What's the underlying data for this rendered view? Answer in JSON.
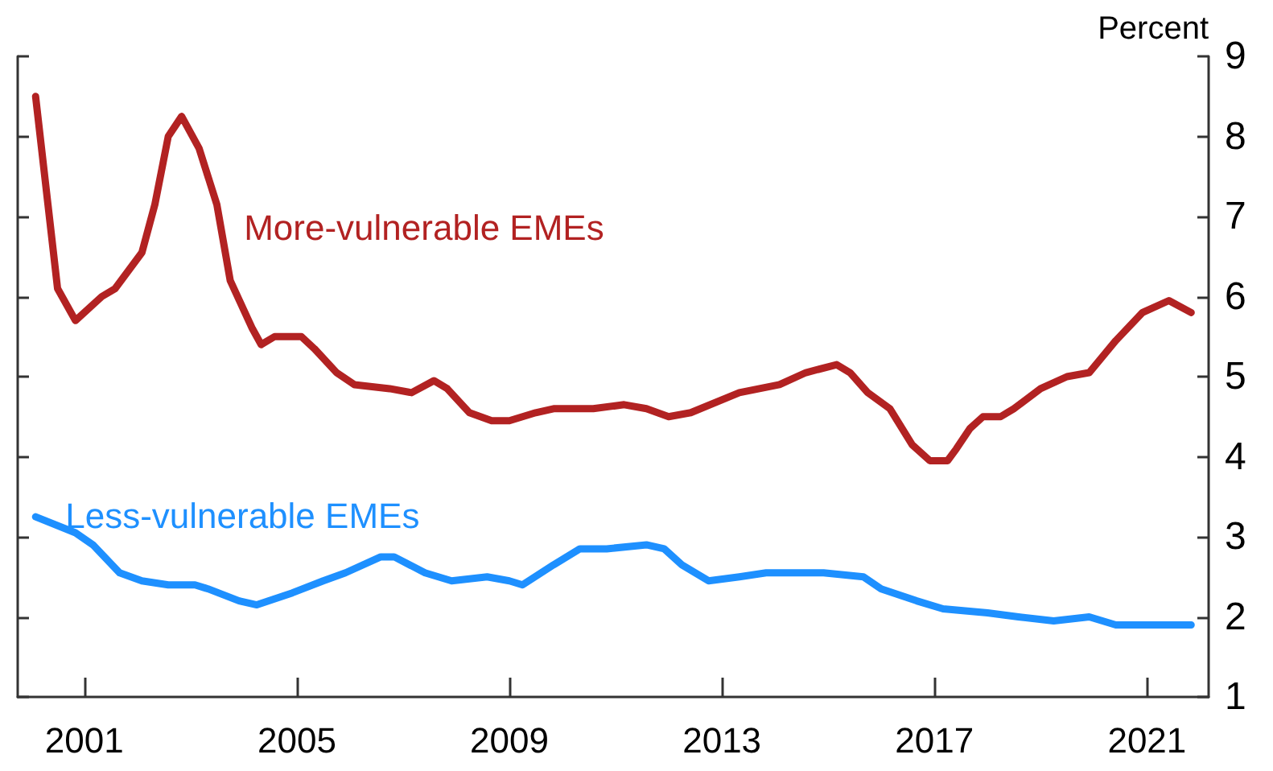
{
  "chart_data": {
    "type": "line",
    "ylabel": "Percent",
    "xlim": [
      "1999-10",
      "2022-03"
    ],
    "xticks": [
      {
        "value": "2001-01",
        "label": "2001"
      },
      {
        "value": "2005-01",
        "label": "2005"
      },
      {
        "value": "2009-01",
        "label": "2009"
      },
      {
        "value": "2013-01",
        "label": "2013"
      },
      {
        "value": "2017-01",
        "label": "2017"
      },
      {
        "value": "2021-01",
        "label": "2021"
      }
    ],
    "ylim": [
      1,
      9
    ],
    "yticks": [
      1,
      2,
      3,
      4,
      5,
      6,
      7,
      8,
      9
    ],
    "grid": false,
    "legend": false,
    "marker": "none",
    "line_style": "solid",
    "series": [
      {
        "name": "More-vulnerable EMEs",
        "color": "#b22222",
        "x": [
          "2000-02",
          "2000-07",
          "2000-11",
          "2001-05",
          "2001-08",
          "2002-02",
          "2002-05",
          "2002-08",
          "2002-11",
          "2003-03",
          "2003-07",
          "2003-10",
          "2004-03",
          "2004-05",
          "2004-08",
          "2005-02",
          "2005-05",
          "2005-10",
          "2006-02",
          "2006-10",
          "2007-03",
          "2007-08",
          "2007-11",
          "2008-04",
          "2008-09",
          "2009-01",
          "2009-07",
          "2009-11",
          "2010-08",
          "2011-03",
          "2011-08",
          "2012-01",
          "2012-06",
          "2013-05",
          "2014-02",
          "2014-08",
          "2015-03",
          "2015-06",
          "2015-10",
          "2016-03",
          "2016-08",
          "2016-12",
          "2017-04",
          "2017-06",
          "2017-09",
          "2017-12",
          "2018-04",
          "2018-07",
          "2019-01",
          "2019-07",
          "2019-12",
          "2020-06",
          "2020-12",
          "2021-06",
          "2021-11"
        ],
        "values": [
          8.5,
          6.1,
          5.7,
          6.0,
          6.1,
          6.55,
          7.15,
          8.0,
          8.25,
          7.85,
          7.15,
          6.2,
          5.6,
          5.4,
          5.5,
          5.5,
          5.35,
          5.05,
          4.9,
          4.85,
          4.8,
          4.95,
          4.85,
          4.55,
          4.45,
          4.45,
          4.55,
          4.6,
          4.6,
          4.65,
          4.6,
          4.5,
          4.55,
          4.8,
          4.9,
          5.05,
          5.15,
          5.05,
          4.8,
          4.6,
          4.15,
          3.95,
          3.95,
          4.1,
          4.35,
          4.5,
          4.5,
          4.6,
          4.85,
          5.0,
          5.05,
          5.45,
          5.8,
          5.95,
          5.8
        ]
      },
      {
        "name": "Less-vulnerable EMEs",
        "color": "#1e90ff",
        "x": [
          "2000-02",
          "2000-11",
          "2001-03",
          "2001-09",
          "2002-02",
          "2002-08",
          "2003-02",
          "2003-05",
          "2003-12",
          "2004-04",
          "2004-12",
          "2005-07",
          "2005-12",
          "2006-08",
          "2006-11",
          "2007-06",
          "2007-12",
          "2008-08",
          "2009-01",
          "2009-04",
          "2009-11",
          "2010-05",
          "2010-11",
          "2011-08",
          "2011-12",
          "2012-04",
          "2012-10",
          "2013-05",
          "2013-11",
          "2014-05",
          "2014-12",
          "2015-09",
          "2016-01",
          "2016-09",
          "2017-03",
          "2018-01",
          "2018-08",
          "2019-04",
          "2019-12",
          "2020-06",
          "2021-11"
        ],
        "values": [
          3.25,
          3.05,
          2.9,
          2.55,
          2.45,
          2.4,
          2.4,
          2.35,
          2.2,
          2.15,
          2.3,
          2.45,
          2.55,
          2.75,
          2.75,
          2.55,
          2.45,
          2.5,
          2.45,
          2.4,
          2.65,
          2.85,
          2.85,
          2.9,
          2.85,
          2.65,
          2.45,
          2.5,
          2.55,
          2.55,
          2.55,
          2.5,
          2.35,
          2.2,
          2.1,
          2.05,
          2.0,
          1.95,
          2.0,
          1.9,
          1.9
        ]
      }
    ]
  }
}
